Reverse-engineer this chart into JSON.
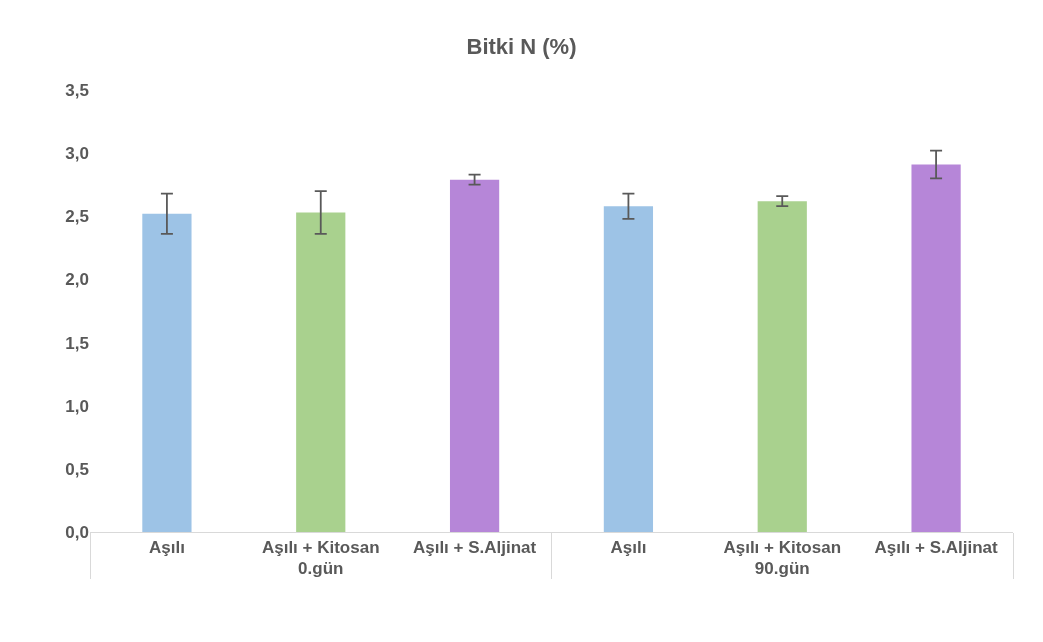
{
  "chart_data": {
    "type": "bar",
    "title": "Bitki N (%)",
    "categories": [
      "Aşılı",
      "Aşılı + Kitosan",
      "Aşılı + S.Aljinat",
      "Aşılı",
      "Aşılı + Kitosan",
      "Aşılı + S.Aljinat"
    ],
    "annotations": [
      "0.gün",
      "90.gün"
    ],
    "values": [
      2.52,
      2.53,
      2.79,
      2.58,
      2.62,
      2.91
    ],
    "errors": [
      0.16,
      0.17,
      0.04,
      0.1,
      0.04,
      0.11
    ],
    "colors": [
      "#9dc3e6",
      "#a9d18e",
      "#b686d8",
      "#9dc3e6",
      "#a9d18e",
      "#b686d8"
    ],
    "ylim": [
      0,
      3.5
    ],
    "yticks": [
      {
        "value": 0,
        "label": "0,0"
      },
      {
        "value": 0.5,
        "label": "0,5"
      },
      {
        "value": 1,
        "label": "1,0"
      },
      {
        "value": 1.5,
        "label": "1,5"
      },
      {
        "value": 2,
        "label": "2,0"
      },
      {
        "value": 2.5,
        "label": "2,5"
      },
      {
        "value": 3,
        "label": "3,0"
      },
      {
        "value": 3.5,
        "label": "3,5"
      }
    ],
    "legend": false
  }
}
